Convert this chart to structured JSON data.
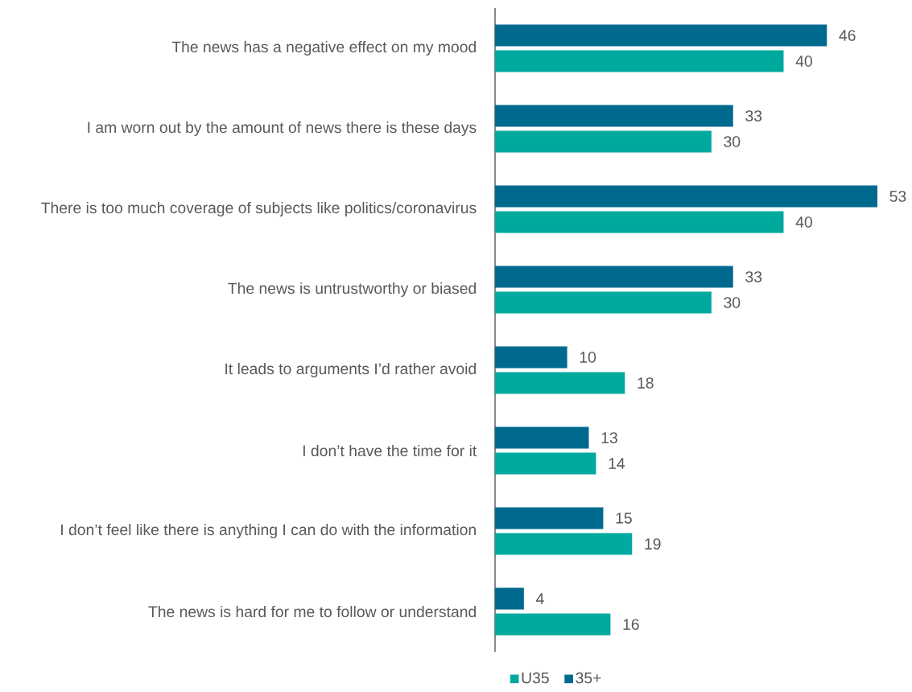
{
  "chart_data": {
    "type": "bar",
    "orientation": "horizontal",
    "categories": [
      "The news has a negative effect on my mood",
      "I am worn out by the amount of news there is these days",
      "There is too much coverage of subjects like politics/coronavirus",
      "The news is untrustworthy or biased",
      "It leads to arguments I’d rather avoid",
      "I don’t have the time for it",
      "I don’t feel like there is anything I can do with the information",
      "The news is hard for me to follow or understand"
    ],
    "series": [
      {
        "name": "U35",
        "color": "#00a99d",
        "values": [
          40,
          30,
          40,
          30,
          18,
          14,
          19,
          16
        ]
      },
      {
        "name": "35+",
        "color": "#006a8e",
        "values": [
          46,
          33,
          53,
          33,
          10,
          13,
          15,
          4
        ]
      }
    ],
    "data_labels": true,
    "legend": "bottom"
  }
}
